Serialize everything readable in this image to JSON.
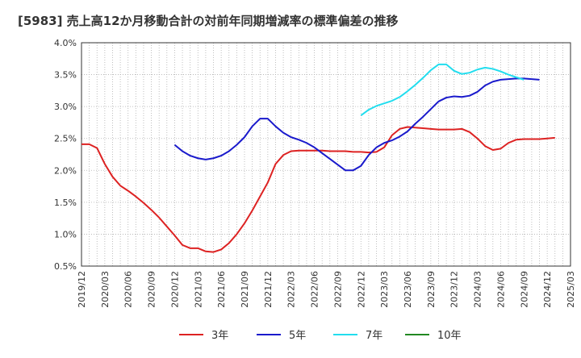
{
  "chart_data": {
    "type": "line",
    "title": "[5983]  売上高12か月移動合計の対前年同期増減率の標準偏差の推移",
    "xlabel": "",
    "ylabel": "",
    "ylim": [
      0.5,
      4.0
    ],
    "y_ticks": [
      "0.5%",
      "1.0%",
      "1.5%",
      "2.0%",
      "2.5%",
      "3.0%",
      "3.5%",
      "4.0%"
    ],
    "y_tick_values": [
      0.5,
      1.0,
      1.5,
      2.0,
      2.5,
      3.0,
      3.5,
      4.0
    ],
    "x_ticks": [
      "2019/12",
      "2020/03",
      "2020/06",
      "2020/09",
      "2020/12",
      "2021/03",
      "2021/06",
      "2021/09",
      "2021/12",
      "2022/03",
      "2022/06",
      "2022/09",
      "2022/12",
      "2023/03",
      "2023/06",
      "2023/09",
      "2023/12",
      "2024/03",
      "2024/06",
      "2024/09",
      "2024/12",
      "2025/03"
    ],
    "x_start": "2019/12",
    "grid": true,
    "legend_position": "bottom",
    "series": [
      {
        "name": "3年",
        "color": "#dd2222",
        "start": "2019/12",
        "values": [
          2.41,
          2.41,
          2.35,
          2.1,
          1.9,
          1.76,
          1.68,
          1.59,
          1.49,
          1.38,
          1.26,
          1.12,
          0.98,
          0.83,
          0.78,
          0.78,
          0.73,
          0.72,
          0.76,
          0.86,
          1.0,
          1.17,
          1.37,
          1.59,
          1.81,
          2.1,
          2.24,
          2.3,
          2.31,
          2.31,
          2.31,
          2.31,
          2.3,
          2.3,
          2.3,
          2.29,
          2.29,
          2.28,
          2.29,
          2.36,
          2.55,
          2.65,
          2.68,
          2.67,
          2.66,
          2.65,
          2.64,
          2.64,
          2.64,
          2.65,
          2.6,
          2.5,
          2.38,
          2.32,
          2.34,
          2.43,
          2.48,
          2.49,
          2.49,
          2.49,
          2.5,
          2.51
        ]
      },
      {
        "name": "5年",
        "color": "#1a1acc",
        "start": "2020/12",
        "values": [
          2.4,
          2.3,
          2.23,
          2.19,
          2.17,
          2.19,
          2.23,
          2.3,
          2.4,
          2.52,
          2.69,
          2.81,
          2.81,
          2.69,
          2.59,
          2.52,
          2.48,
          2.43,
          2.36,
          2.27,
          2.18,
          2.09,
          2.0,
          2.0,
          2.07,
          2.24,
          2.36,
          2.43,
          2.47,
          2.53,
          2.61,
          2.73,
          2.84,
          2.96,
          3.08,
          3.14,
          3.16,
          3.15,
          3.17,
          3.23,
          3.33,
          3.39,
          3.42,
          3.43,
          3.44,
          3.44,
          3.43,
          3.42
        ]
      },
      {
        "name": "7年",
        "color": "#22ddee",
        "start": "2022/12",
        "values": [
          2.86,
          2.95,
          3.01,
          3.05,
          3.09,
          3.15,
          3.24,
          3.34,
          3.45,
          3.57,
          3.66,
          3.66,
          3.56,
          3.51,
          3.53,
          3.58,
          3.61,
          3.59,
          3.55,
          3.5,
          3.46,
          3.42
        ]
      },
      {
        "name": "10年",
        "color": "#228822",
        "start": "2024/12",
        "values": []
      }
    ]
  }
}
